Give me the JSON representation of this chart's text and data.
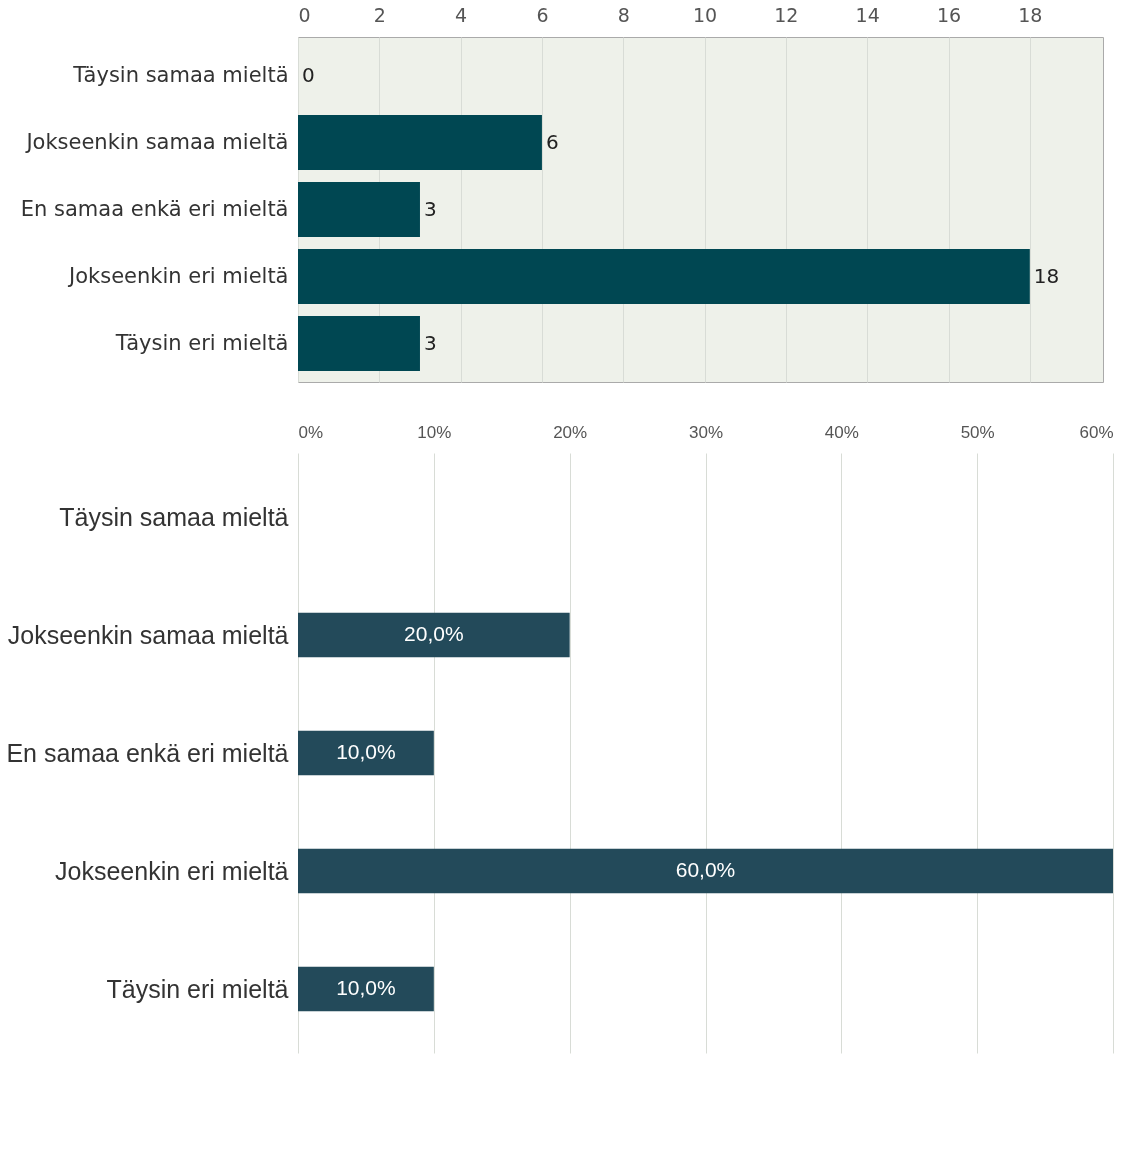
{
  "chart_data": [
    {
      "type": "bar",
      "orientation": "horizontal",
      "categories": [
        "Täysin samaa mieltä",
        "Jokseenkin samaa mieltä",
        "En samaa enkä eri mieltä",
        "Jokseenkin eri mieltä",
        "Täysin eri mieltä"
      ],
      "values": [
        0,
        6,
        3,
        18,
        3
      ],
      "color": "#004752",
      "xlim": [
        0,
        19.8
      ],
      "xticks": [
        0,
        2,
        4,
        6,
        8,
        10,
        12,
        14,
        16,
        18
      ],
      "grid": "x",
      "data_labels": true
    },
    {
      "type": "bar",
      "orientation": "horizontal",
      "categories": [
        "Täysin samaa mieltä",
        "Jokseenkin samaa mieltä",
        "En samaa enkä eri mieltä",
        "Jokseenkin eri mieltä",
        "Täysin eri mieltä"
      ],
      "values": [
        0,
        20,
        10,
        60,
        10
      ],
      "value_labels": [
        null,
        "20,0%",
        "10,0%",
        "60,0%",
        "10,0%"
      ],
      "color": "#234a5a",
      "xlim": [
        0,
        60
      ],
      "xticks": [
        {
          "value": 0,
          "label": "0%"
        },
        {
          "value": 10,
          "label": "10%"
        },
        {
          "value": 20,
          "label": "20%"
        },
        {
          "value": 30,
          "label": "30%"
        },
        {
          "value": 40,
          "label": "40%"
        },
        {
          "value": 50,
          "label": "50%"
        },
        {
          "value": 60,
          "label": "60%"
        }
      ],
      "grid": "x"
    }
  ]
}
